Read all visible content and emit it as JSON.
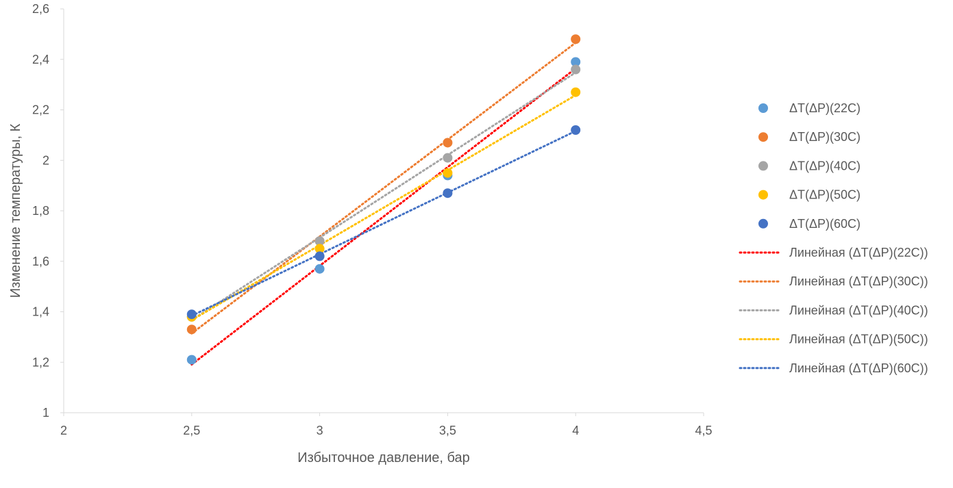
{
  "chart_data": {
    "type": "scatter",
    "title": "",
    "xlabel": "Избыточное давление, бар",
    "ylabel": "Изменение температуры, К",
    "xlim": [
      2,
      4.5
    ],
    "ylim": [
      1,
      2.6
    ],
    "xticks": [
      2,
      2.5,
      3,
      3.5,
      4,
      4.5
    ],
    "yticks": [
      1,
      1.2,
      1.4,
      1.6,
      1.8,
      2,
      2.2,
      2.4,
      2.6
    ],
    "xtick_labels": [
      "2",
      "2,5",
      "3",
      "3,5",
      "4",
      "4,5"
    ],
    "ytick_labels": [
      "1",
      "1,2",
      "1,4",
      "1,6",
      "1,8",
      "2",
      "2,2",
      "2,4",
      "2,6"
    ],
    "grid": false,
    "legend_position": "right",
    "series": [
      {
        "name": "ΔT(ΔP)(22C)",
        "color": "#5B9BD5",
        "x": [
          2.5,
          3,
          3.5,
          4
        ],
        "y": [
          1.21,
          1.57,
          1.94,
          2.39
        ]
      },
      {
        "name": "ΔT(ΔP)(30C)",
        "color": "#ED7D31",
        "x": [
          2.5,
          3,
          3.5,
          4
        ],
        "y": [
          1.33,
          1.68,
          2.07,
          2.48
        ]
      },
      {
        "name": "ΔT(ΔP)(40C)",
        "color": "#A5A5A5",
        "x": [
          2.5,
          3,
          3.5,
          4
        ],
        "y": [
          1.38,
          1.68,
          2.01,
          2.36
        ]
      },
      {
        "name": "ΔT(ΔP)(50C)",
        "color": "#FFC000",
        "x": [
          2.5,
          3,
          3.5,
          4
        ],
        "y": [
          1.38,
          1.65,
          1.95,
          2.27
        ]
      },
      {
        "name": "ΔT(ΔP)(60C)",
        "color": "#4472C4",
        "x": [
          2.5,
          3,
          3.5,
          4
        ],
        "y": [
          1.39,
          1.62,
          1.87,
          2.12
        ]
      }
    ],
    "trendlines": [
      {
        "name": "Линейная (ΔT(ΔP)(22C))",
        "color": "#FF0000",
        "style": "dotted"
      },
      {
        "name": "Линейная (ΔT(ΔP)(30C))",
        "color": "#ED7D31",
        "style": "dotted"
      },
      {
        "name": "Линейная (ΔT(ΔP)(40C))",
        "color": "#A5A5A5",
        "style": "dotted"
      },
      {
        "name": "Линейная (ΔT(ΔP)(50C))",
        "color": "#FFC000",
        "style": "dotted"
      },
      {
        "name": "Линейная (ΔT(ΔP)(60C))",
        "color": "#4472C4",
        "style": "dotted"
      }
    ]
  }
}
